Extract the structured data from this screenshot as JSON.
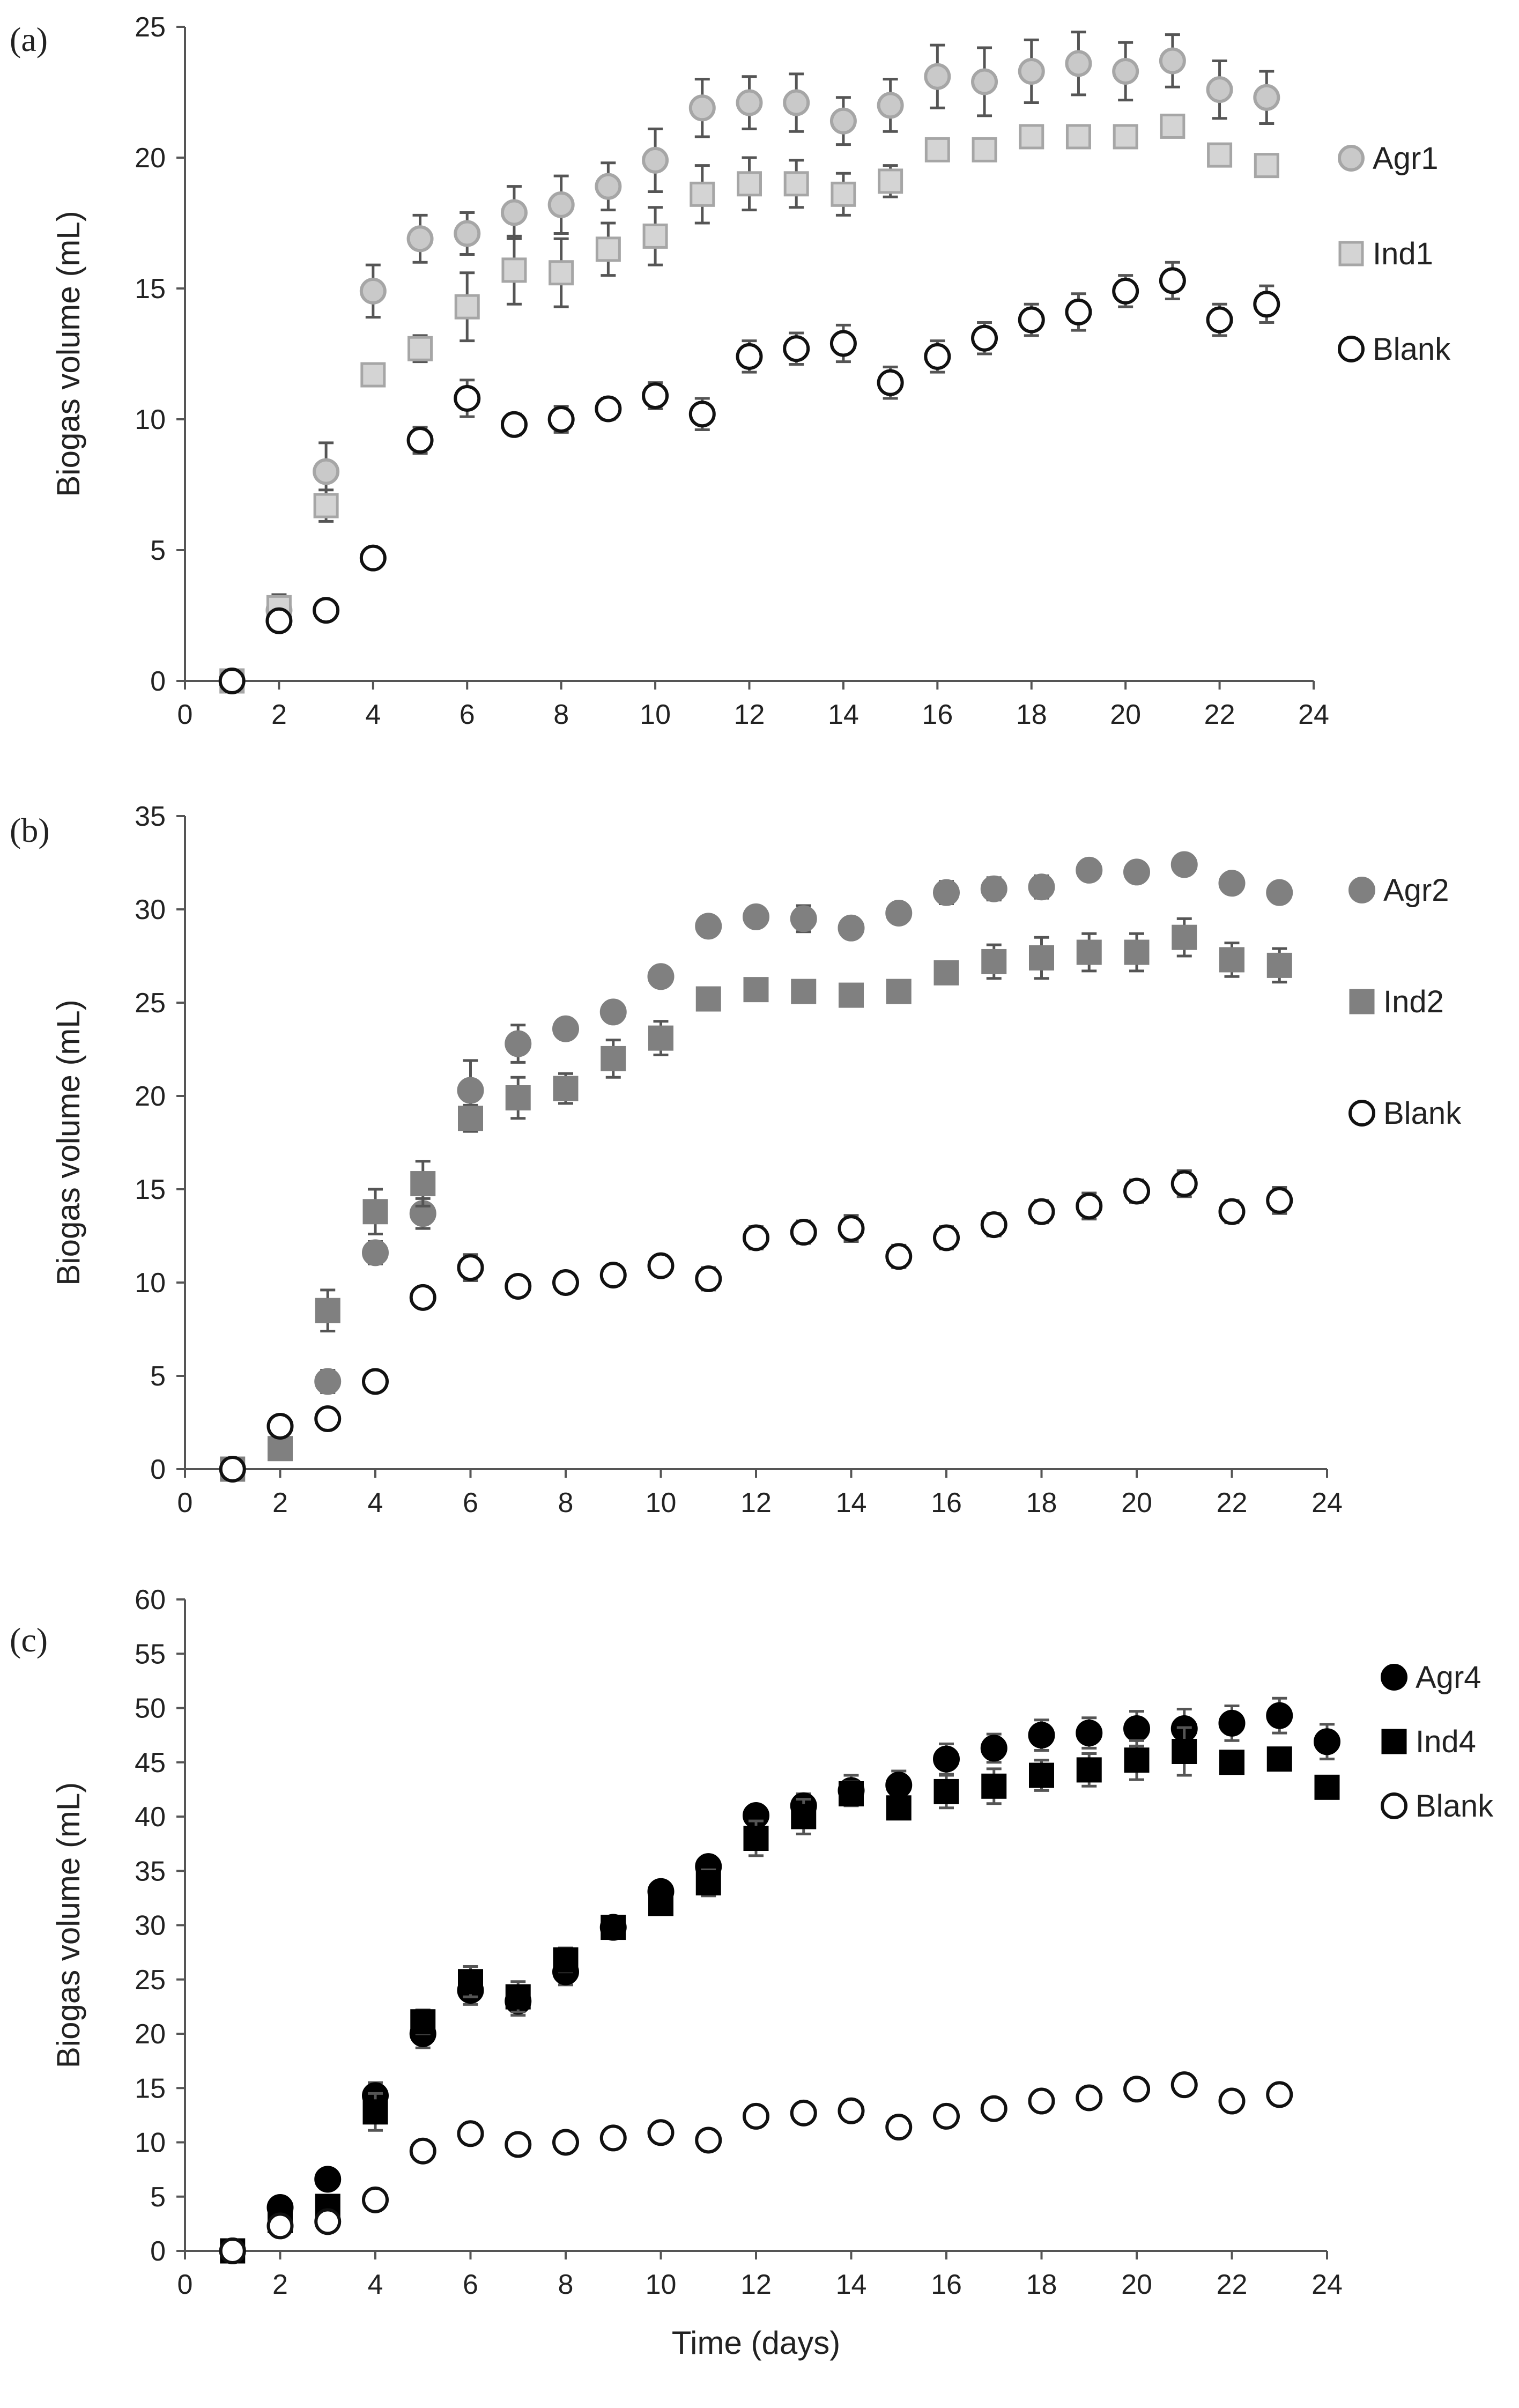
{
  "figure": {
    "x_axis_label": "Time (days)"
  },
  "chart_data": [
    {
      "type": "scatter",
      "panel_label": "(a)",
      "xlabel": "",
      "ylabel": "Biogas volume (mL)",
      "xlim": [
        0,
        24
      ],
      "ylim": [
        0,
        25
      ],
      "xticks": [
        "0",
        "2",
        "4",
        "6",
        "8",
        "10",
        "12",
        "14",
        "16",
        "18",
        "20",
        "22",
        "24"
      ],
      "yticks": [
        "0",
        "5",
        "10",
        "15",
        "20",
        "25"
      ],
      "legend_position": "right",
      "series": [
        {
          "name": "Agr1",
          "marker": "circle",
          "fill": "#c9c9c9",
          "stroke": "#a6a6a6",
          "x": [
            1,
            2,
            3,
            4,
            5,
            6,
            7,
            8,
            9,
            10,
            11,
            12,
            13,
            14,
            15,
            16,
            17,
            18,
            19,
            20,
            21,
            22,
            23
          ],
          "y": [
            0,
            2.7,
            8.0,
            14.9,
            16.9,
            17.1,
            17.9,
            18.2,
            18.9,
            19.9,
            21.9,
            22.1,
            22.1,
            21.4,
            22.0,
            23.1,
            22.9,
            23.3,
            23.6,
            23.3,
            23.7,
            22.6,
            22.3
          ],
          "err": [
            0,
            0.4,
            1.1,
            1.0,
            0.9,
            0.8,
            1.0,
            1.1,
            0.9,
            1.2,
            1.1,
            1.0,
            1.1,
            0.9,
            1.0,
            1.2,
            1.3,
            1.2,
            1.2,
            1.1,
            1.0,
            1.1,
            1.0
          ]
        },
        {
          "name": "Ind1",
          "marker": "square",
          "fill": "#d4d4d4",
          "stroke": "#a6a6a6",
          "x": [
            1,
            2,
            3,
            4,
            5,
            6,
            7,
            8,
            9,
            10,
            11,
            12,
            13,
            14,
            15,
            16,
            17,
            18,
            19,
            20,
            21,
            22,
            23
          ],
          "y": [
            0,
            2.8,
            6.7,
            11.7,
            12.7,
            14.3,
            15.7,
            15.6,
            16.5,
            17.0,
            18.6,
            19.0,
            19.0,
            18.6,
            19.1,
            20.3,
            20.3,
            20.8,
            20.8,
            20.8,
            21.2,
            20.1,
            19.7
          ],
          "err": [
            0,
            0.5,
            0.6,
            0,
            0.5,
            1.3,
            1.3,
            1.3,
            1.0,
            1.1,
            1.1,
            1.0,
            0.9,
            0.8,
            0.6,
            0.4,
            0,
            0,
            0,
            0,
            0,
            0,
            0
          ]
        },
        {
          "name": "Blank",
          "marker": "circle",
          "fill": "#ffffff",
          "stroke": "#111111",
          "x": [
            1,
            2,
            3,
            4,
            5,
            6,
            7,
            8,
            9,
            10,
            11,
            12,
            13,
            14,
            15,
            16,
            17,
            18,
            19,
            20,
            21,
            22,
            23
          ],
          "y": [
            0,
            2.3,
            2.7,
            4.7,
            9.2,
            10.8,
            9.8,
            10.0,
            10.4,
            10.9,
            10.2,
            12.4,
            12.7,
            12.9,
            11.4,
            12.4,
            13.1,
            13.8,
            14.1,
            14.9,
            15.3,
            13.8,
            14.4
          ],
          "err": [
            0,
            0.2,
            0.3,
            0.3,
            0.5,
            0.7,
            0.4,
            0.5,
            0.4,
            0.5,
            0.6,
            0.6,
            0.6,
            0.7,
            0.6,
            0.6,
            0.6,
            0.6,
            0.7,
            0.6,
            0.7,
            0.6,
            0.7
          ]
        }
      ]
    },
    {
      "type": "scatter",
      "panel_label": "(b)",
      "xlabel": "",
      "ylabel": "Biogas volume (mL)",
      "xlim": [
        0,
        24
      ],
      "ylim": [
        0,
        35
      ],
      "xticks": [
        "0",
        "2",
        "4",
        "6",
        "8",
        "10",
        "12",
        "14",
        "16",
        "18",
        "20",
        "22",
        "24"
      ],
      "yticks": [
        "0",
        "5",
        "10",
        "15",
        "20",
        "25",
        "30",
        "35"
      ],
      "legend_position": "right",
      "series": [
        {
          "name": "Agr2",
          "marker": "circle",
          "fill": "#808080",
          "stroke": "#808080",
          "x": [
            1,
            2,
            3,
            4,
            5,
            6,
            7,
            8,
            9,
            10,
            11,
            12,
            13,
            14,
            15,
            16,
            17,
            18,
            19,
            20,
            21,
            22,
            23
          ],
          "y": [
            0,
            2.3,
            4.7,
            11.6,
            13.7,
            20.3,
            22.8,
            23.6,
            24.5,
            26.4,
            29.1,
            29.6,
            29.5,
            29.0,
            29.8,
            30.9,
            31.1,
            31.2,
            32.1,
            32.0,
            32.4,
            31.4,
            30.9
          ],
          "err": [
            0,
            0.2,
            0.6,
            0.6,
            0.8,
            1.6,
            1.0,
            0.5,
            0.4,
            0.4,
            0,
            0,
            0.7,
            0,
            0,
            0.6,
            0.6,
            0.6,
            0,
            0,
            0,
            0.5,
            0.5
          ]
        },
        {
          "name": "Ind2",
          "marker": "square",
          "fill": "#808080",
          "stroke": "#808080",
          "x": [
            1,
            2,
            3,
            4,
            5,
            6,
            7,
            8,
            9,
            10,
            11,
            12,
            13,
            14,
            15,
            16,
            17,
            18,
            19,
            20,
            21,
            22,
            23
          ],
          "y": [
            0,
            1.1,
            8.5,
            13.8,
            15.3,
            18.8,
            19.9,
            20.4,
            22.0,
            23.1,
            25.2,
            25.7,
            25.6,
            25.4,
            25.6,
            26.6,
            27.2,
            27.4,
            27.7,
            27.7,
            28.5,
            27.3,
            27.0
          ],
          "err": [
            0,
            0.3,
            1.1,
            1.2,
            1.2,
            0.7,
            1.1,
            0.8,
            1.0,
            0.9,
            0,
            0,
            0,
            0,
            0,
            0.5,
            0.9,
            1.1,
            1.0,
            1.0,
            1.0,
            0.9,
            0.9
          ]
        },
        {
          "name": "Blank",
          "marker": "circle",
          "fill": "#ffffff",
          "stroke": "#111111",
          "x": [
            1,
            2,
            3,
            4,
            5,
            6,
            7,
            8,
            9,
            10,
            11,
            12,
            13,
            14,
            15,
            16,
            17,
            18,
            19,
            20,
            21,
            22,
            23
          ],
          "y": [
            0,
            2.3,
            2.7,
            4.7,
            9.2,
            10.8,
            9.8,
            10.0,
            10.4,
            10.9,
            10.2,
            12.4,
            12.7,
            12.9,
            11.4,
            12.4,
            13.1,
            13.8,
            14.1,
            14.9,
            15.3,
            13.8,
            14.4
          ],
          "err": [
            0,
            0.2,
            0.3,
            0.3,
            0.5,
            0.7,
            0.4,
            0.5,
            0.4,
            0.5,
            0.6,
            0.6,
            0.6,
            0.7,
            0.6,
            0.6,
            0.6,
            0.6,
            0.7,
            0.6,
            0.7,
            0.6,
            0.7
          ]
        }
      ]
    },
    {
      "type": "scatter",
      "panel_label": "(c)",
      "xlabel": "Time (days)",
      "ylabel": "Biogas volume (mL)",
      "xlim": [
        0,
        24
      ],
      "ylim": [
        0,
        60
      ],
      "xticks": [
        "0",
        "2",
        "4",
        "6",
        "8",
        "10",
        "12",
        "14",
        "16",
        "18",
        "20",
        "22",
        "24"
      ],
      "yticks": [
        "0",
        "5",
        "10",
        "15",
        "20",
        "25",
        "30",
        "35",
        "40",
        "45",
        "50",
        "55",
        "60"
      ],
      "legend_position": "right",
      "series": [
        {
          "name": "Agr4",
          "marker": "circle",
          "fill": "#000000",
          "stroke": "#000000",
          "x": [
            1,
            2,
            3,
            4,
            5,
            6,
            7,
            8,
            9,
            10,
            11,
            12,
            13,
            14,
            15,
            16,
            17,
            18,
            19,
            20,
            21,
            22,
            23,
            24
          ],
          "y": [
            0,
            4.0,
            6.6,
            14.3,
            20.0,
            24.0,
            23.0,
            25.7,
            29.8,
            33.1,
            35.4,
            40.1,
            41.0,
            42.4,
            42.9,
            45.3,
            46.3,
            47.5,
            47.7,
            48.1,
            48.1,
            48.6,
            49.3,
            46.9
          ],
          "err": [
            0,
            0.4,
            0.5,
            1.2,
            1.3,
            1.3,
            1.3,
            1.2,
            0.6,
            0.8,
            0.9,
            0.8,
            1.1,
            1.4,
            1.3,
            1.4,
            1.3,
            1.4,
            1.4,
            1.6,
            1.8,
            1.6,
            1.6,
            1.6
          ]
        },
        {
          "name": "Ind4",
          "marker": "square",
          "fill": "#000000",
          "stroke": "#000000",
          "x": [
            1,
            2,
            3,
            4,
            5,
            6,
            7,
            8,
            9,
            10,
            11,
            12,
            13,
            14,
            15,
            16,
            17,
            18,
            19,
            20,
            21,
            22,
            23,
            24
          ],
          "y": [
            0,
            2.8,
            4.1,
            12.8,
            21.1,
            24.8,
            23.4,
            26.8,
            29.8,
            32.0,
            33.9,
            38.0,
            40.0,
            42.1,
            40.8,
            42.3,
            42.8,
            43.8,
            44.3,
            45.2,
            46.0,
            45.0,
            45.3,
            42.7
          ],
          "err": [
            0,
            0.3,
            0.5,
            1.7,
            1.1,
            1.4,
            1.4,
            1.1,
            0.7,
            1.0,
            1.2,
            1.6,
            1.6,
            1.1,
            0.9,
            1.5,
            1.6,
            1.4,
            1.5,
            1.8,
            2.2,
            0,
            1.0,
            0.6
          ]
        },
        {
          "name": "Blank",
          "marker": "circle",
          "fill": "#ffffff",
          "stroke": "#111111",
          "x": [
            1,
            2,
            3,
            4,
            5,
            6,
            7,
            8,
            9,
            10,
            11,
            12,
            13,
            14,
            15,
            16,
            17,
            18,
            19,
            20,
            21,
            22,
            23
          ],
          "y": [
            0,
            2.3,
            2.7,
            4.7,
            9.2,
            10.8,
            9.8,
            10.0,
            10.4,
            10.9,
            10.2,
            12.4,
            12.7,
            12.9,
            11.4,
            12.4,
            13.1,
            13.8,
            14.1,
            14.9,
            15.3,
            13.8,
            14.4
          ],
          "err": [
            0,
            0.3,
            0.3,
            0.4,
            0.7,
            0.8,
            0.6,
            0.6,
            0.7,
            0.7,
            0.8,
            0.8,
            0.8,
            0.9,
            0.8,
            0.8,
            0.8,
            0.8,
            0.9,
            0.8,
            0.9,
            0.8,
            0.9
          ]
        }
      ]
    }
  ]
}
